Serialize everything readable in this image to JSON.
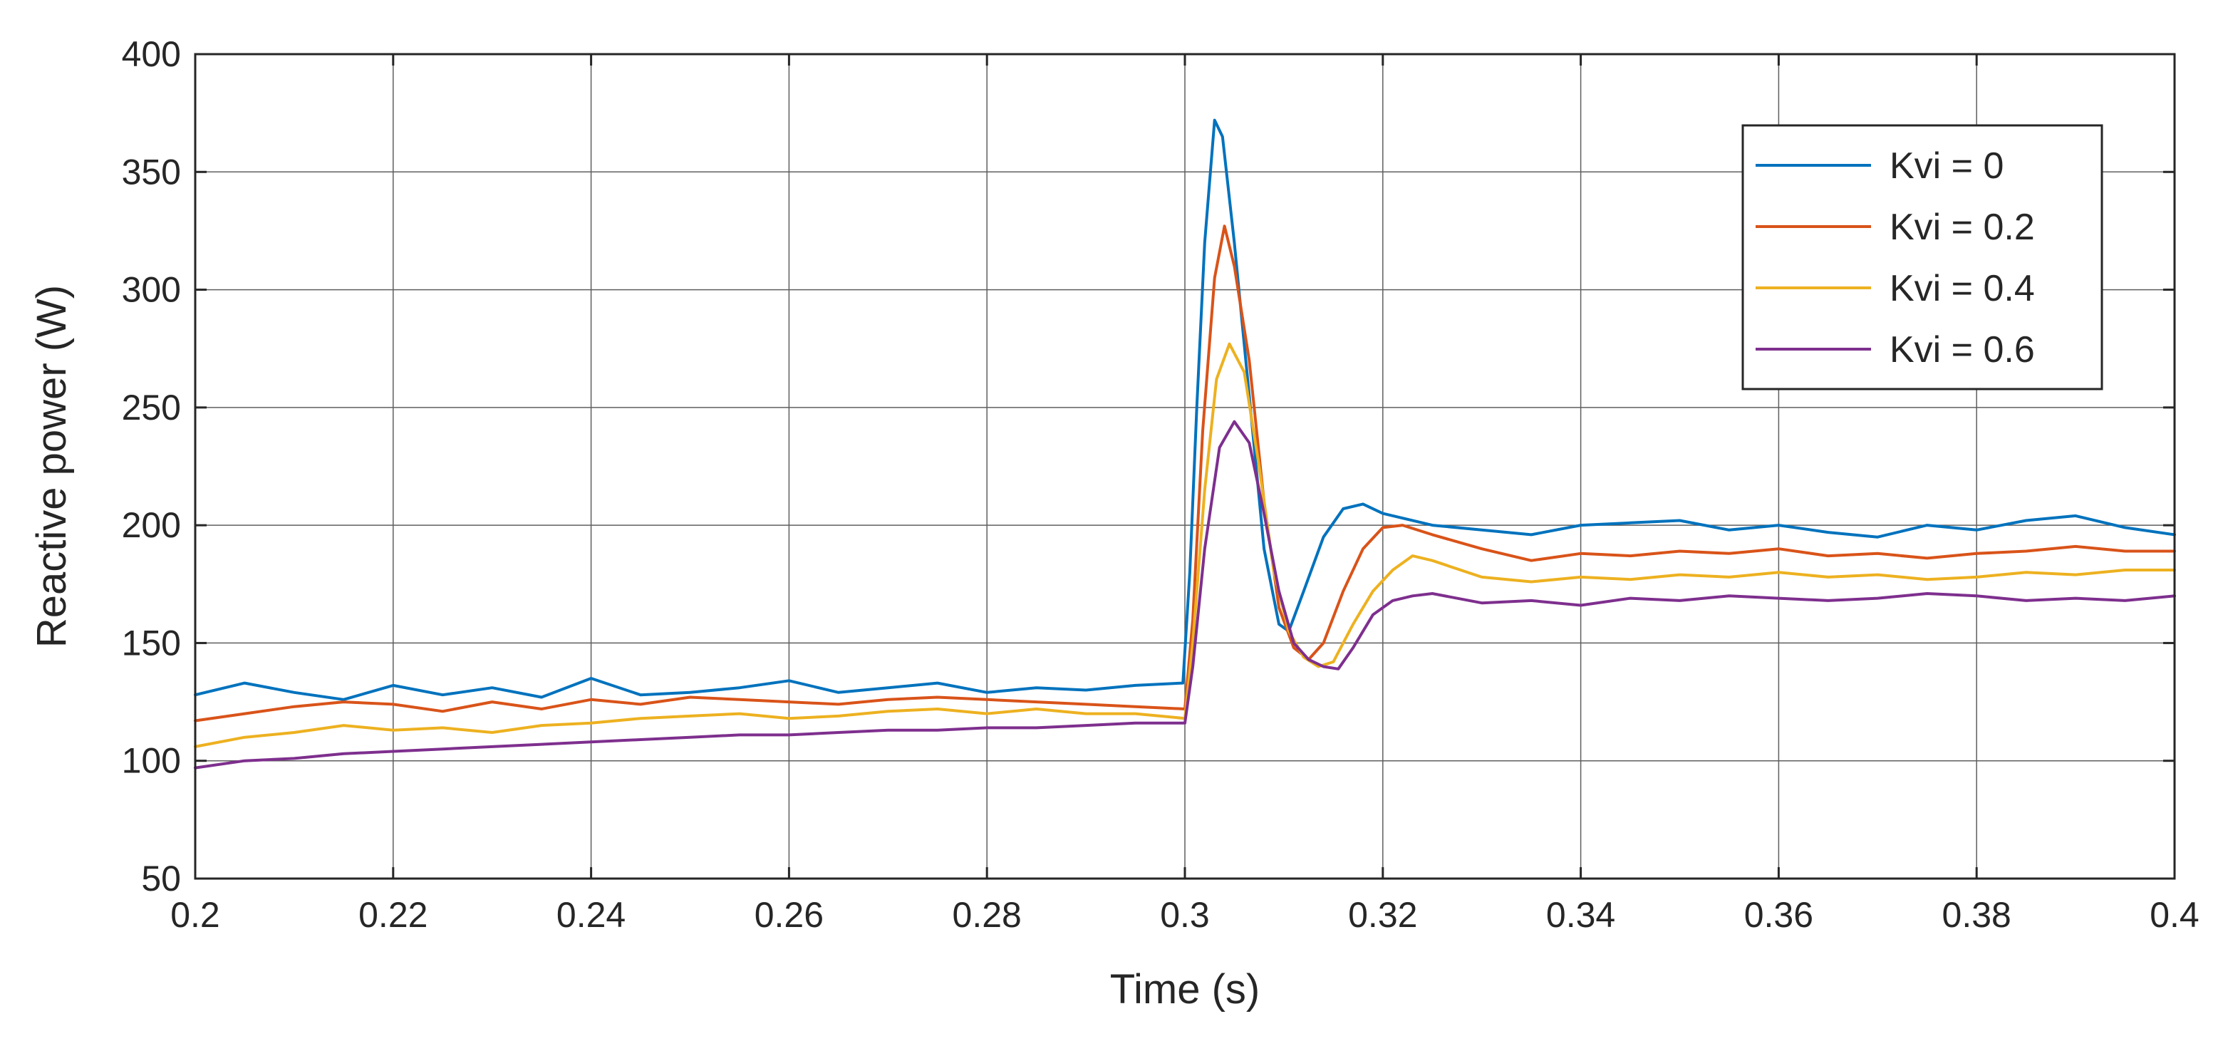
{
  "chart_data": {
    "type": "line",
    "xlabel": "Time (s)",
    "ylabel": "Reactive power (W)",
    "xlim": [
      0.2,
      0.4
    ],
    "ylim": [
      50,
      400
    ],
    "xticks": [
      0.2,
      0.22,
      0.24,
      0.26,
      0.28,
      0.3,
      0.32,
      0.34,
      0.36,
      0.38,
      0.4
    ],
    "xtick_labels": [
      "0.2",
      "0.22",
      "0.24",
      "0.26",
      "0.28",
      "0.3",
      "0.32",
      "0.34",
      "0.36",
      "0.38",
      "0.4"
    ],
    "yticks": [
      50,
      100,
      150,
      200,
      250,
      300,
      350,
      400
    ],
    "ytick_labels": [
      "50",
      "100",
      "150",
      "200",
      "250",
      "300",
      "350",
      "400"
    ],
    "legend_position": "top-right",
    "grid": true,
    "series": [
      {
        "name": "Kvi =  0",
        "color": "#0072BD",
        "x": [
          0.2,
          0.205,
          0.21,
          0.215,
          0.22,
          0.225,
          0.23,
          0.235,
          0.24,
          0.245,
          0.25,
          0.255,
          0.26,
          0.265,
          0.27,
          0.275,
          0.28,
          0.285,
          0.29,
          0.295,
          0.2998,
          0.3005,
          0.3012,
          0.302,
          0.303,
          0.3038,
          0.305,
          0.3065,
          0.308,
          0.3095,
          0.3105,
          0.312,
          0.314,
          0.316,
          0.318,
          0.32,
          0.325,
          0.33,
          0.335,
          0.34,
          0.345,
          0.35,
          0.355,
          0.36,
          0.365,
          0.37,
          0.375,
          0.38,
          0.385,
          0.39,
          0.395,
          0.4
        ],
        "y": [
          128,
          133,
          129,
          126,
          132,
          128,
          131,
          127,
          135,
          128,
          129,
          131,
          134,
          129,
          131,
          133,
          129,
          131,
          130,
          132,
          133,
          180,
          250,
          320,
          372,
          365,
          320,
          255,
          190,
          158,
          155,
          172,
          195,
          207,
          209,
          205,
          200,
          198,
          196,
          200,
          201,
          202,
          198,
          200,
          197,
          195,
          200,
          198,
          202,
          204,
          199,
          196
        ]
      },
      {
        "name": "Kvi =  0.2",
        "color": "#D95319",
        "x": [
          0.2,
          0.205,
          0.21,
          0.215,
          0.22,
          0.225,
          0.23,
          0.235,
          0.24,
          0.245,
          0.25,
          0.255,
          0.26,
          0.265,
          0.27,
          0.275,
          0.28,
          0.285,
          0.29,
          0.295,
          0.3,
          0.3008,
          0.3018,
          0.303,
          0.304,
          0.305,
          0.3065,
          0.308,
          0.3095,
          0.311,
          0.3125,
          0.314,
          0.316,
          0.318,
          0.32,
          0.322,
          0.325,
          0.33,
          0.335,
          0.34,
          0.345,
          0.35,
          0.355,
          0.36,
          0.365,
          0.37,
          0.375,
          0.38,
          0.385,
          0.39,
          0.395,
          0.4
        ],
        "y": [
          117,
          120,
          123,
          125,
          124,
          121,
          125,
          122,
          126,
          124,
          127,
          126,
          125,
          124,
          126,
          127,
          126,
          125,
          124,
          123,
          122,
          160,
          240,
          305,
          327,
          310,
          270,
          210,
          165,
          148,
          143,
          150,
          172,
          190,
          199,
          200,
          196,
          190,
          185,
          188,
          187,
          189,
          188,
          190,
          187,
          188,
          186,
          188,
          189,
          191,
          189,
          189
        ]
      },
      {
        "name": "Kvi =  0.4",
        "color": "#EDB120",
        "x": [
          0.2,
          0.205,
          0.21,
          0.215,
          0.22,
          0.225,
          0.23,
          0.235,
          0.24,
          0.245,
          0.25,
          0.255,
          0.26,
          0.265,
          0.27,
          0.275,
          0.28,
          0.285,
          0.29,
          0.295,
          0.3,
          0.3008,
          0.302,
          0.3032,
          0.3045,
          0.306,
          0.3075,
          0.309,
          0.3105,
          0.312,
          0.3135,
          0.315,
          0.317,
          0.319,
          0.321,
          0.323,
          0.325,
          0.33,
          0.335,
          0.34,
          0.345,
          0.35,
          0.355,
          0.36,
          0.365,
          0.37,
          0.375,
          0.38,
          0.385,
          0.39,
          0.395,
          0.4
        ],
        "y": [
          106,
          110,
          112,
          115,
          113,
          114,
          112,
          115,
          116,
          118,
          119,
          120,
          118,
          119,
          121,
          122,
          120,
          122,
          120,
          120,
          118,
          150,
          215,
          262,
          277,
          265,
          225,
          180,
          155,
          144,
          140,
          142,
          158,
          172,
          181,
          187,
          185,
          178,
          176,
          178,
          177,
          179,
          178,
          180,
          178,
          179,
          177,
          178,
          180,
          179,
          181,
          181
        ]
      },
      {
        "name": "Kvi =  0.6",
        "color": "#7E2F8E",
        "x": [
          0.2,
          0.205,
          0.21,
          0.215,
          0.22,
          0.225,
          0.23,
          0.235,
          0.24,
          0.245,
          0.25,
          0.255,
          0.26,
          0.265,
          0.27,
          0.275,
          0.28,
          0.285,
          0.29,
          0.295,
          0.3,
          0.3008,
          0.302,
          0.3035,
          0.305,
          0.3065,
          0.308,
          0.3095,
          0.311,
          0.3125,
          0.314,
          0.3155,
          0.317,
          0.319,
          0.321,
          0.323,
          0.325,
          0.33,
          0.335,
          0.34,
          0.345,
          0.35,
          0.355,
          0.36,
          0.365,
          0.37,
          0.375,
          0.38,
          0.385,
          0.39,
          0.395,
          0.4
        ],
        "y": [
          97,
          100,
          101,
          103,
          104,
          105,
          106,
          107,
          108,
          109,
          110,
          111,
          111,
          112,
          113,
          113,
          114,
          114,
          115,
          116,
          116,
          140,
          190,
          233,
          244,
          235,
          205,
          172,
          150,
          143,
          140,
          139,
          148,
          162,
          168,
          170,
          171,
          167,
          168,
          166,
          169,
          168,
          170,
          169,
          168,
          169,
          171,
          170,
          168,
          169,
          168,
          170
        ]
      }
    ]
  }
}
